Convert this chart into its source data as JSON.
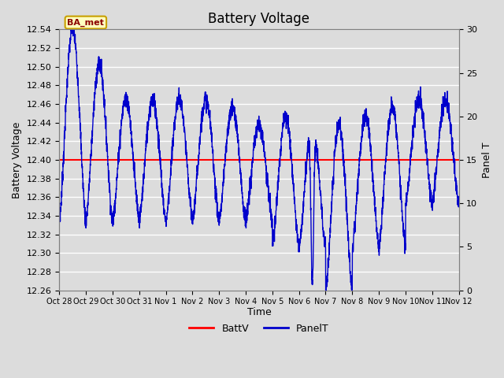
{
  "title": "Battery Voltage",
  "ylabel_left": "Battery Voltage",
  "ylabel_right": "Panel T",
  "xlabel": "Time",
  "ylim_left": [
    12.26,
    12.54
  ],
  "ylim_right": [
    0,
    30
  ],
  "batt_v_value": 12.4,
  "annotation_text": "BA_met",
  "annotation_color": "#8B0000",
  "annotation_bg": "#FFFFC0",
  "annotation_border": "#C8A000",
  "line_color_battv": "#FF0000",
  "line_color_panelt": "#0000CC",
  "background_color": "#DCDCDC",
  "plot_bg_color": "#DCDCDC",
  "grid_color": "#FFFFFF",
  "xtick_labels": [
    "Oct 28",
    "Oct 29",
    "Oct 30",
    "Oct 31",
    "Nov 1",
    "Nov 2",
    "Nov 3",
    "Nov 4",
    "Nov 5",
    "Nov 6",
    "Nov 7",
    "Nov 8",
    "Nov 9",
    "Nov 10",
    "Nov 11",
    "Nov 12"
  ],
  "yticks_left": [
    12.26,
    12.28,
    12.3,
    12.32,
    12.34,
    12.36,
    12.38,
    12.4,
    12.42,
    12.44,
    12.46,
    12.48,
    12.5,
    12.52,
    12.54
  ],
  "yticks_right": [
    0,
    5,
    10,
    15,
    20,
    25,
    30
  ],
  "legend_labels": [
    "BattV",
    "PanelT"
  ],
  "legend_colors": [
    "#FF0000",
    "#0000CC"
  ]
}
